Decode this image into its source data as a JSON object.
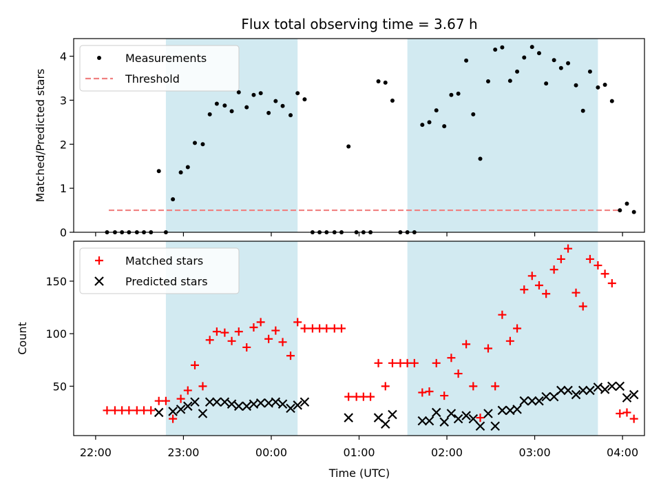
{
  "chart_data": {
    "title": "Flux total observing time = 3.67 h",
    "xlabel": "Time (UTC)",
    "x_tick_labels": [
      "22:00",
      "23:00",
      "00:00",
      "01:00",
      "02:00",
      "03:00",
      "04:00"
    ],
    "x_tick_hours": [
      22,
      23,
      24,
      25,
      26,
      27,
      28
    ],
    "xlim_hours": [
      21.75,
      28.25
    ],
    "shaded_intervals_hours": [
      [
        22.8,
        24.3
      ],
      [
        25.55,
        27.72
      ]
    ],
    "shade_color": "#add8e6",
    "panels": [
      {
        "type": "scatter",
        "ylabel": "Matched/Predicted stars",
        "ylim": [
          0,
          4.4
        ],
        "y_ticks": [
          0,
          1,
          2,
          3,
          4
        ],
        "legend": {
          "placement": "top-left",
          "entries": [
            "Measurements",
            "Threshold"
          ]
        },
        "threshold": {
          "name": "Threshold",
          "value": 0.5,
          "x_range_hours": [
            22.15,
            27.95
          ],
          "color": "#f08080"
        },
        "series": [
          {
            "name": "Measurements",
            "color": "#000000",
            "points": [
              [
                22.13,
                0
              ],
              [
                22.22,
                0
              ],
              [
                22.3,
                0
              ],
              [
                22.38,
                0
              ],
              [
                22.47,
                0
              ],
              [
                22.55,
                0
              ],
              [
                22.63,
                0
              ],
              [
                22.72,
                1.39
              ],
              [
                22.8,
                0
              ],
              [
                22.88,
                0.75
              ],
              [
                22.97,
                1.36
              ],
              [
                23.05,
                1.48
              ],
              [
                23.13,
                2.03
              ],
              [
                23.22,
                2.0
              ],
              [
                23.3,
                2.68
              ],
              [
                23.38,
                2.92
              ],
              [
                23.47,
                2.88
              ],
              [
                23.55,
                2.75
              ],
              [
                23.63,
                3.18
              ],
              [
                23.72,
                2.84
              ],
              [
                23.8,
                3.12
              ],
              [
                23.88,
                3.16
              ],
              [
                23.97,
                2.71
              ],
              [
                24.05,
                2.98
              ],
              [
                24.13,
                2.87
              ],
              [
                24.22,
                2.66
              ],
              [
                24.3,
                3.16
              ],
              [
                24.38,
                3.02
              ],
              [
                24.47,
                0
              ],
              [
                24.55,
                0
              ],
              [
                24.63,
                0
              ],
              [
                24.72,
                0
              ],
              [
                24.8,
                0
              ],
              [
                24.88,
                1.95
              ],
              [
                24.97,
                0
              ],
              [
                25.05,
                0
              ],
              [
                25.13,
                0
              ],
              [
                25.22,
                3.43
              ],
              [
                25.3,
                3.4
              ],
              [
                25.38,
                2.99
              ],
              [
                25.47,
                0
              ],
              [
                25.55,
                0
              ],
              [
                25.63,
                0
              ],
              [
                25.72,
                2.44
              ],
              [
                25.8,
                2.5
              ],
              [
                25.88,
                2.77
              ],
              [
                25.97,
                2.41
              ],
              [
                26.05,
                3.12
              ],
              [
                26.13,
                3.15
              ],
              [
                26.22,
                3.9
              ],
              [
                26.3,
                2.68
              ],
              [
                26.38,
                1.67
              ],
              [
                26.47,
                3.43
              ],
              [
                26.55,
                4.15
              ],
              [
                26.63,
                4.2
              ],
              [
                26.72,
                3.44
              ],
              [
                26.8,
                3.65
              ],
              [
                26.88,
                3.97
              ],
              [
                26.97,
                4.21
              ],
              [
                27.05,
                4.07
              ],
              [
                27.13,
                3.38
              ],
              [
                27.22,
                3.91
              ],
              [
                27.3,
                3.73
              ],
              [
                27.38,
                3.84
              ],
              [
                27.47,
                3.34
              ],
              [
                27.55,
                2.76
              ],
              [
                27.63,
                3.65
              ],
              [
                27.72,
                3.29
              ],
              [
                27.8,
                3.35
              ],
              [
                27.88,
                2.98
              ],
              [
                27.97,
                0.5
              ],
              [
                28.05,
                0.65
              ],
              [
                28.13,
                0.46
              ]
            ]
          }
        ]
      },
      {
        "type": "scatter",
        "ylabel": "Count",
        "ylim": [
          3,
          188
        ],
        "y_ticks": [
          50,
          100,
          150
        ],
        "legend": {
          "placement": "top-left",
          "entries": [
            "Matched stars",
            "Predicted stars"
          ]
        },
        "series": [
          {
            "name": "Matched stars",
            "marker": "plus",
            "color": "#ff0000",
            "points": [
              [
                22.13,
                27
              ],
              [
                22.22,
                27
              ],
              [
                22.3,
                27
              ],
              [
                22.38,
                27
              ],
              [
                22.47,
                27
              ],
              [
                22.55,
                27
              ],
              [
                22.63,
                27
              ],
              [
                22.72,
                36
              ],
              [
                22.8,
                36
              ],
              [
                22.88,
                19
              ],
              [
                22.97,
                38
              ],
              [
                23.05,
                46
              ],
              [
                23.13,
                70
              ],
              [
                23.22,
                50
              ],
              [
                23.3,
                94
              ],
              [
                23.38,
                102
              ],
              [
                23.47,
                101
              ],
              [
                23.55,
                93
              ],
              [
                23.63,
                102
              ],
              [
                23.72,
                87
              ],
              [
                23.8,
                106
              ],
              [
                23.88,
                111
              ],
              [
                23.97,
                95
              ],
              [
                24.05,
                103
              ],
              [
                24.13,
                92
              ],
              [
                24.22,
                79
              ],
              [
                24.3,
                111
              ],
              [
                24.38,
                105
              ],
              [
                24.47,
                105
              ],
              [
                24.55,
                105
              ],
              [
                24.63,
                105
              ],
              [
                24.72,
                105
              ],
              [
                24.8,
                105
              ],
              [
                24.88,
                40
              ],
              [
                24.97,
                40
              ],
              [
                25.05,
                40
              ],
              [
                25.13,
                40
              ],
              [
                25.22,
                72
              ],
              [
                25.3,
                50
              ],
              [
                25.38,
                72
              ],
              [
                25.47,
                72
              ],
              [
                25.55,
                72
              ],
              [
                25.63,
                72
              ],
              [
                25.72,
                44
              ],
              [
                25.8,
                45
              ],
              [
                25.88,
                72
              ],
              [
                25.97,
                41
              ],
              [
                26.05,
                77
              ],
              [
                26.13,
                62
              ],
              [
                26.22,
                90
              ],
              [
                26.3,
                50
              ],
              [
                26.38,
                20
              ],
              [
                26.47,
                86
              ],
              [
                26.55,
                50
              ],
              [
                26.63,
                118
              ],
              [
                26.72,
                93
              ],
              [
                26.8,
                105
              ],
              [
                26.88,
                142
              ],
              [
                26.97,
                155
              ],
              [
                27.05,
                146
              ],
              [
                27.13,
                138
              ],
              [
                27.22,
                161
              ],
              [
                27.3,
                171
              ],
              [
                27.38,
                181
              ],
              [
                27.47,
                139
              ],
              [
                27.55,
                126
              ],
              [
                27.63,
                171
              ],
              [
                27.72,
                165
              ],
              [
                27.8,
                157
              ],
              [
                27.88,
                148
              ],
              [
                27.97,
                24
              ],
              [
                28.05,
                25
              ],
              [
                28.13,
                19
              ]
            ]
          },
          {
            "name": "Predicted stars",
            "marker": "x",
            "color": "#000000",
            "points": [
              [
                22.72,
                25
              ],
              [
                22.88,
                26
              ],
              [
                22.97,
                28
              ],
              [
                23.05,
                31
              ],
              [
                23.13,
                35
              ],
              [
                23.22,
                24
              ],
              [
                23.3,
                35
              ],
              [
                23.38,
                35
              ],
              [
                23.47,
                35
              ],
              [
                23.55,
                33
              ],
              [
                23.63,
                31
              ],
              [
                23.72,
                31
              ],
              [
                23.8,
                33
              ],
              [
                23.88,
                34
              ],
              [
                23.97,
                34
              ],
              [
                24.05,
                35
              ],
              [
                24.13,
                33
              ],
              [
                24.22,
                29
              ],
              [
                24.3,
                32
              ],
              [
                24.38,
                35
              ],
              [
                24.88,
                20
              ],
              [
                25.22,
                20
              ],
              [
                25.3,
                14
              ],
              [
                25.38,
                23
              ],
              [
                25.72,
                17
              ],
              [
                25.8,
                17
              ],
              [
                25.88,
                25
              ],
              [
                25.97,
                16
              ],
              [
                26.05,
                24
              ],
              [
                26.13,
                19
              ],
              [
                26.22,
                22
              ],
              [
                26.3,
                19
              ],
              [
                26.38,
                12
              ],
              [
                26.47,
                24
              ],
              [
                26.55,
                12
              ],
              [
                26.63,
                27
              ],
              [
                26.72,
                27
              ],
              [
                26.8,
                28
              ],
              [
                26.88,
                36
              ],
              [
                26.97,
                36
              ],
              [
                27.05,
                36
              ],
              [
                27.13,
                40
              ],
              [
                27.22,
                40
              ],
              [
                27.3,
                46
              ],
              [
                27.38,
                46
              ],
              [
                27.47,
                42
              ],
              [
                27.55,
                46
              ],
              [
                27.63,
                46
              ],
              [
                27.72,
                49
              ],
              [
                27.8,
                47
              ],
              [
                27.88,
                50
              ],
              [
                27.97,
                50
              ],
              [
                28.05,
                39
              ],
              [
                28.13,
                42
              ]
            ]
          }
        ]
      }
    ]
  }
}
